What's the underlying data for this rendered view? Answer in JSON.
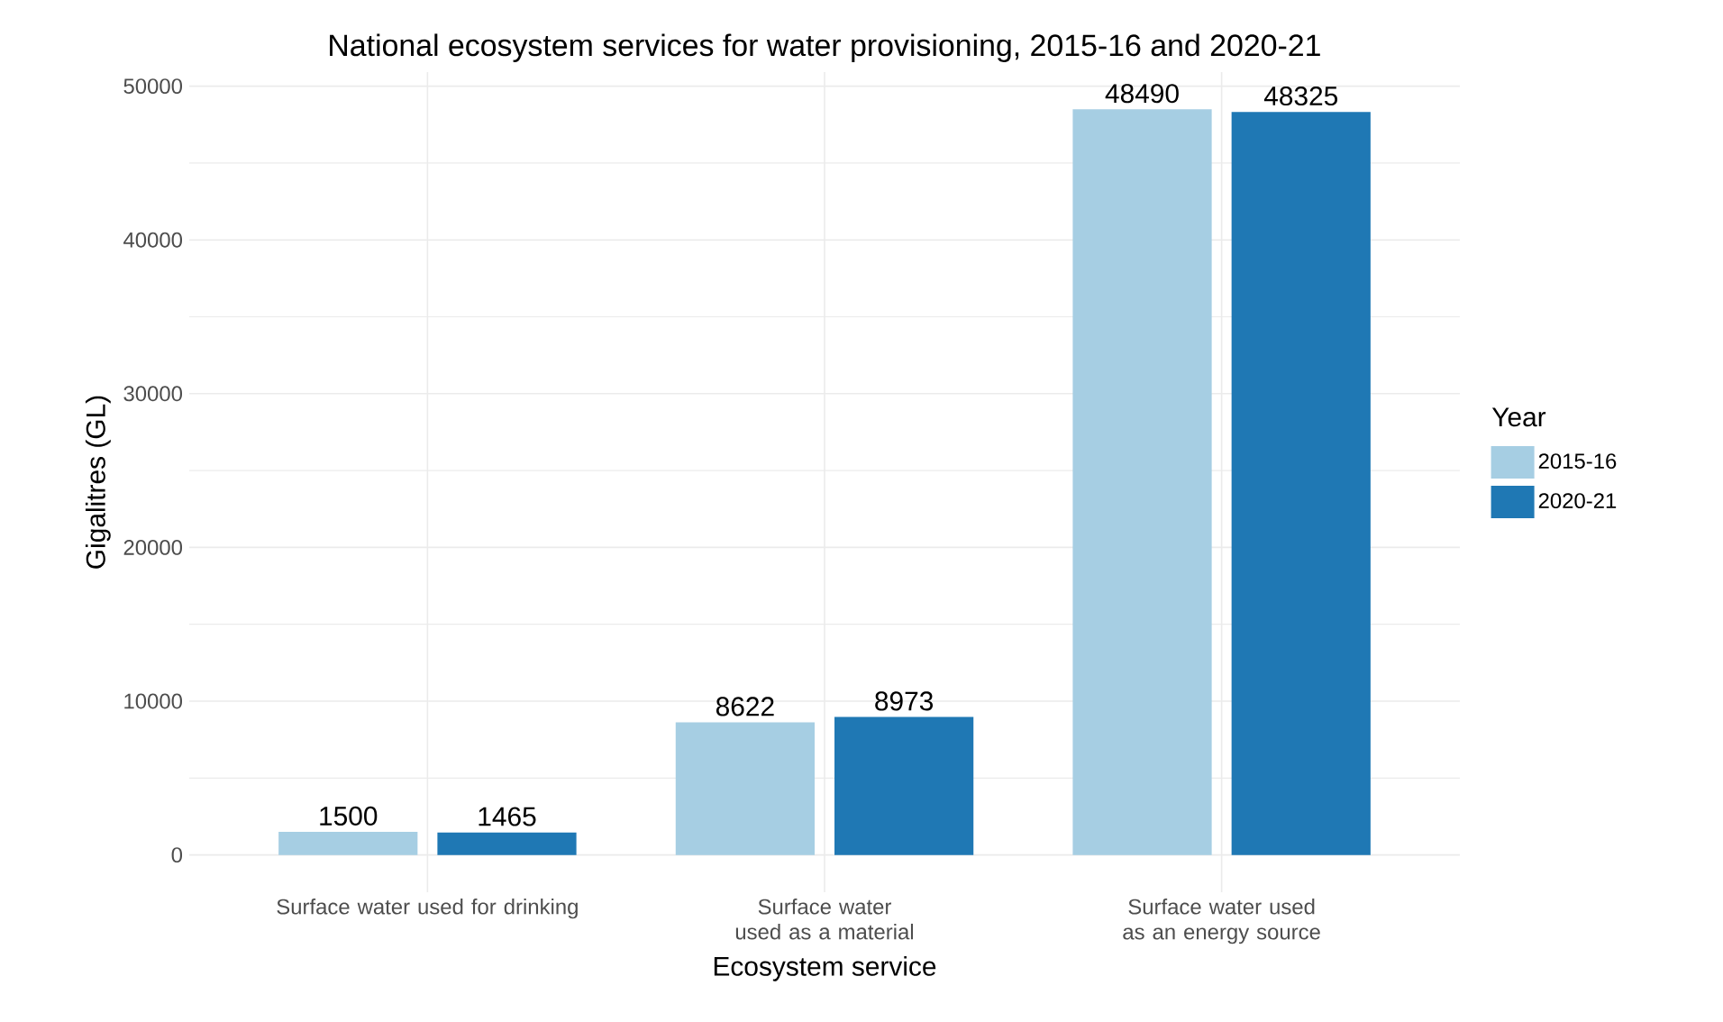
{
  "chart_data": {
    "type": "bar",
    "title": "National ecosystem services for water provisioning, 2015-16 and 2020-21",
    "xlabel": "Ecosystem service",
    "ylabel": "Gigalitres (GL)",
    "legend_title": "Year",
    "categories": [
      "Surface water used for drinking",
      "Surface water used as a material",
      "Surface water used as an energy source"
    ],
    "series": [
      {
        "name": "2015-16",
        "color": "#a6cee3",
        "values": [
          1500,
          8622,
          48490
        ]
      },
      {
        "name": "2020-21",
        "color": "#1f78b4",
        "values": [
          1465,
          8973,
          48325
        ]
      }
    ],
    "ylim": [
      -2425,
      50915
    ],
    "yticks": [
      0,
      {
        "value": 5000,
        "label": null
      },
      10000,
      {
        "value": 15000,
        "label": null
      },
      20000,
      {
        "value": 25000,
        "label": null
      },
      30000,
      {
        "value": 35000,
        "label": null
      },
      40000,
      {
        "value": 45000,
        "label": null
      },
      50000
    ],
    "grid": true,
    "legend": "right",
    "data_labels": true
  }
}
